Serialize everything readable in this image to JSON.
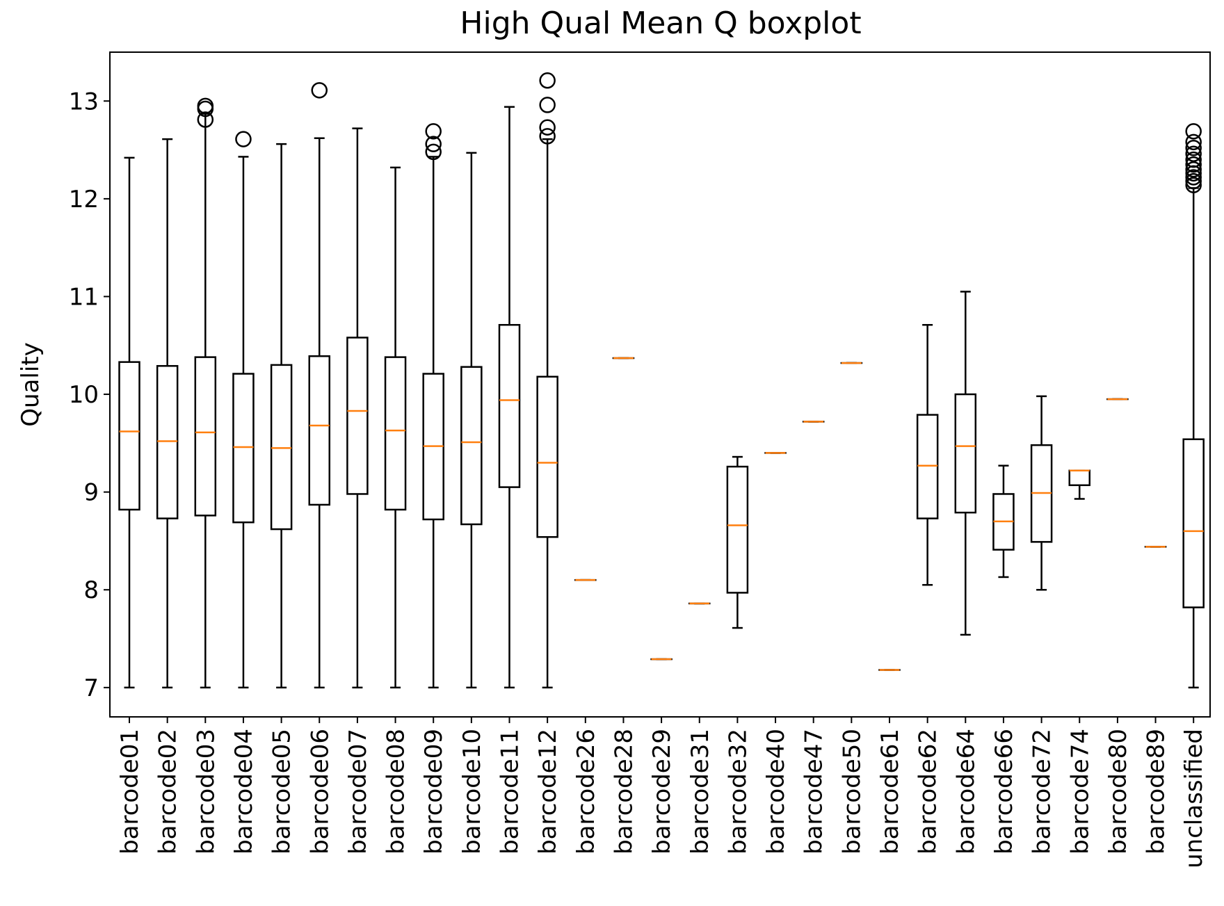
{
  "chart_data": {
    "type": "boxplot",
    "title": "High Qual Mean Q boxplot",
    "xlabel": "",
    "ylabel": "Quality",
    "ylim": [
      6.7,
      13.5
    ],
    "yticks": [
      7,
      8,
      9,
      10,
      11,
      12,
      13
    ],
    "grid": false,
    "colors": {
      "box": "#000000",
      "median": "#ff7f0e",
      "flier": "#000000"
    },
    "boxes": [
      {
        "label": "barcode01",
        "whislo": 7.0,
        "q1": 8.82,
        "med": 9.62,
        "q3": 10.33,
        "whishi": 12.42,
        "fliers": []
      },
      {
        "label": "barcode02",
        "whislo": 7.0,
        "q1": 8.73,
        "med": 9.52,
        "q3": 10.29,
        "whishi": 12.61,
        "fliers": []
      },
      {
        "label": "barcode03",
        "whislo": 7.0,
        "q1": 8.76,
        "med": 9.61,
        "q3": 10.38,
        "whishi": 12.87,
        "fliers": [
          12.81,
          12.92,
          12.95
        ]
      },
      {
        "label": "barcode04",
        "whislo": 7.0,
        "q1": 8.69,
        "med": 9.46,
        "q3": 10.21,
        "whishi": 12.43,
        "fliers": [
          12.61
        ]
      },
      {
        "label": "barcode05",
        "whislo": 7.0,
        "q1": 8.62,
        "med": 9.45,
        "q3": 10.3,
        "whishi": 12.56,
        "fliers": []
      },
      {
        "label": "barcode06",
        "whislo": 7.0,
        "q1": 8.87,
        "med": 9.68,
        "q3": 10.39,
        "whishi": 12.62,
        "fliers": [
          13.11
        ]
      },
      {
        "label": "barcode07",
        "whislo": 7.0,
        "q1": 8.98,
        "med": 9.83,
        "q3": 10.58,
        "whishi": 12.72,
        "fliers": []
      },
      {
        "label": "barcode08",
        "whislo": 7.0,
        "q1": 8.82,
        "med": 9.63,
        "q3": 10.38,
        "whishi": 12.32,
        "fliers": []
      },
      {
        "label": "barcode09",
        "whislo": 7.0,
        "q1": 8.72,
        "med": 9.47,
        "q3": 10.21,
        "whishi": 12.43,
        "fliers": [
          12.48,
          12.56,
          12.69
        ]
      },
      {
        "label": "barcode10",
        "whislo": 7.0,
        "q1": 8.67,
        "med": 9.51,
        "q3": 10.28,
        "whishi": 12.47,
        "fliers": []
      },
      {
        "label": "barcode11",
        "whislo": 7.0,
        "q1": 9.05,
        "med": 9.94,
        "q3": 10.71,
        "whishi": 12.94,
        "fliers": []
      },
      {
        "label": "barcode12",
        "whislo": 7.0,
        "q1": 8.54,
        "med": 9.3,
        "q3": 10.18,
        "whishi": 12.61,
        "fliers": [
          12.64,
          12.73,
          12.96,
          13.21
        ]
      },
      {
        "label": "barcode26",
        "whislo": 8.1,
        "q1": 8.1,
        "med": 8.1,
        "q3": 8.1,
        "whishi": 8.1,
        "fliers": []
      },
      {
        "label": "barcode28",
        "whislo": 10.37,
        "q1": 10.37,
        "med": 10.37,
        "q3": 10.37,
        "whishi": 10.37,
        "fliers": []
      },
      {
        "label": "barcode29",
        "whislo": 7.29,
        "q1": 7.29,
        "med": 7.29,
        "q3": 7.29,
        "whishi": 7.29,
        "fliers": []
      },
      {
        "label": "barcode31",
        "whislo": 7.86,
        "q1": 7.86,
        "med": 7.86,
        "q3": 7.86,
        "whishi": 7.86,
        "fliers": []
      },
      {
        "label": "barcode32",
        "whislo": 7.61,
        "q1": 7.97,
        "med": 8.66,
        "q3": 9.26,
        "whishi": 9.36,
        "fliers": []
      },
      {
        "label": "barcode40",
        "whislo": 9.4,
        "q1": 9.4,
        "med": 9.4,
        "q3": 9.4,
        "whishi": 9.4,
        "fliers": []
      },
      {
        "label": "barcode47",
        "whislo": 9.72,
        "q1": 9.72,
        "med": 9.72,
        "q3": 9.72,
        "whishi": 9.72,
        "fliers": []
      },
      {
        "label": "barcode50",
        "whislo": 10.32,
        "q1": 10.32,
        "med": 10.32,
        "q3": 10.32,
        "whishi": 10.32,
        "fliers": []
      },
      {
        "label": "barcode61",
        "whislo": 7.18,
        "q1": 7.18,
        "med": 7.18,
        "q3": 7.18,
        "whishi": 7.18,
        "fliers": []
      },
      {
        "label": "barcode62",
        "whislo": 8.05,
        "q1": 8.73,
        "med": 9.27,
        "q3": 9.79,
        "whishi": 10.71,
        "fliers": []
      },
      {
        "label": "barcode64",
        "whislo": 7.54,
        "q1": 8.79,
        "med": 9.47,
        "q3": 10.0,
        "whishi": 11.05,
        "fliers": []
      },
      {
        "label": "barcode66",
        "whislo": 8.13,
        "q1": 8.41,
        "med": 8.7,
        "q3": 8.98,
        "whishi": 9.27,
        "fliers": []
      },
      {
        "label": "barcode72",
        "whislo": 8.0,
        "q1": 8.49,
        "med": 8.99,
        "q3": 9.48,
        "whishi": 9.98,
        "fliers": []
      },
      {
        "label": "barcode74",
        "whislo": 8.93,
        "q1": 9.07,
        "med": 9.22,
        "q3": 9.22,
        "whishi": 9.22,
        "fliers": []
      },
      {
        "label": "barcode80",
        "whislo": 9.95,
        "q1": 9.95,
        "med": 9.95,
        "q3": 9.95,
        "whishi": 9.95,
        "fliers": []
      },
      {
        "label": "barcode89",
        "whislo": 8.44,
        "q1": 8.44,
        "med": 8.44,
        "q3": 8.44,
        "whishi": 8.44,
        "fliers": []
      },
      {
        "label": "unclassified",
        "whislo": 7.0,
        "q1": 7.82,
        "med": 8.6,
        "q3": 9.54,
        "whishi": 12.11,
        "fliers": [
          12.14,
          12.18,
          12.22,
          12.26,
          12.3,
          12.35,
          12.4,
          12.46,
          12.52,
          12.58,
          12.69
        ]
      }
    ]
  }
}
